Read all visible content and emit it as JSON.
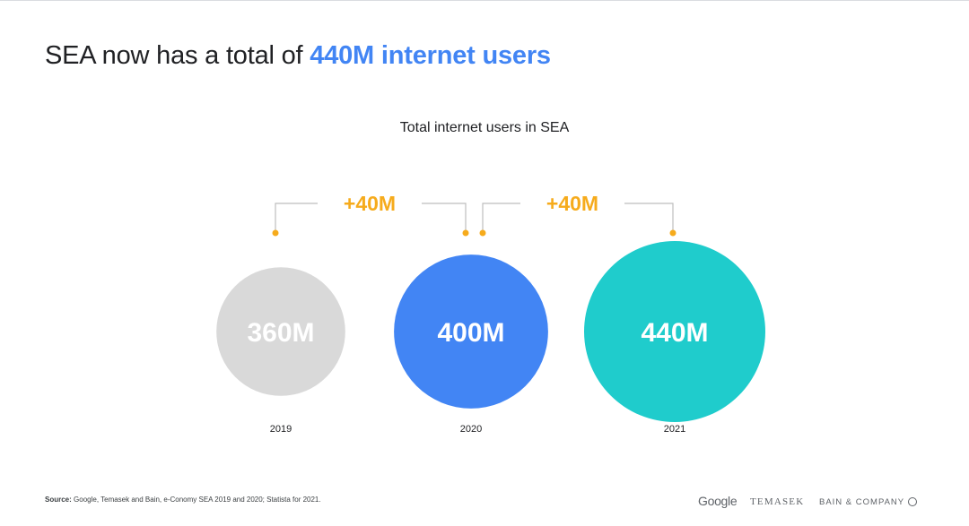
{
  "headline": {
    "prefix": "SEA now has a total of",
    "highlight": "440M internet users"
  },
  "colors": {
    "accent": "#4285f4",
    "growth": "#f6ab1c",
    "connector": "#bdbdbd",
    "circle_2019": "#d9d9d9",
    "circle_2020": "#4285f4",
    "circle_2021": "#1fcccc"
  },
  "chart_data": {
    "type": "bubble",
    "title": "Total internet users in SEA",
    "unit": "M",
    "categories": [
      "2019",
      "2020",
      "2021"
    ],
    "values": [
      360,
      400,
      440
    ],
    "value_labels": [
      "360M",
      "400M",
      "440M"
    ],
    "annotations": [
      {
        "from": "2019",
        "to": "2020",
        "label": "+40M"
      },
      {
        "from": "2020",
        "to": "2021",
        "label": "+40M"
      }
    ]
  },
  "footer": {
    "source_label": "Source:",
    "source_text": " Google, Temasek and Bain, e-Conomy SEA 2019 and 2020; Statista for 2021.",
    "logos": {
      "google": "Google",
      "temasek": "TEMASEK",
      "bain": "BAIN & COMPANY"
    }
  }
}
